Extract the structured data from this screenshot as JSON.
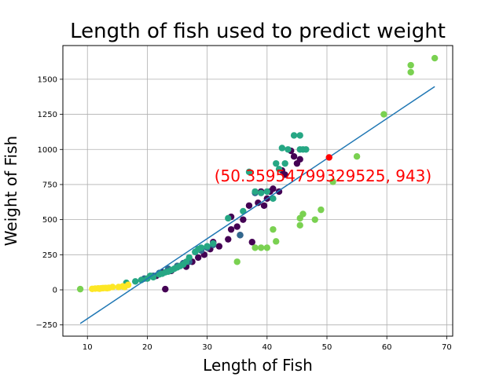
{
  "chart_data": {
    "type": "scatter",
    "title": "Length of fish used to predict weight",
    "xlabel": "Length of Fish",
    "ylabel": "Weight of Fish",
    "xlim": [
      5.9,
      71.0
    ],
    "ylim": [
      -330,
      1740
    ],
    "x_ticks": [
      10,
      20,
      30,
      40,
      50,
      60,
      70
    ],
    "y_ticks": [
      -250,
      0,
      250,
      500,
      750,
      1000,
      1250,
      1500
    ],
    "grid": true,
    "annotation": {
      "text": "(50.35954799329525, 943)",
      "x": 31.2,
      "y": 810,
      "color": "#ff0000"
    },
    "highlight_point": {
      "x": 50.36,
      "y": 943,
      "color": "#ff0000"
    },
    "regression_line": {
      "x": [
        8.8,
        68.0
      ],
      "y": [
        -240,
        1448
      ],
      "color": "#1f77b4"
    },
    "series": [
      {
        "color": "#440154",
        "points": [
          [
            23.0,
            5
          ],
          [
            21.5,
            100
          ],
          [
            22.5,
            125
          ],
          [
            24.0,
            135
          ],
          [
            26.5,
            165
          ],
          [
            27.5,
            200
          ],
          [
            28.5,
            230
          ],
          [
            29.5,
            250
          ],
          [
            30.5,
            290
          ],
          [
            31.0,
            340
          ],
          [
            32.0,
            310
          ],
          [
            33.5,
            360
          ],
          [
            34.0,
            430
          ],
          [
            35.0,
            450
          ],
          [
            35.5,
            390
          ],
          [
            36.0,
            500
          ],
          [
            37.0,
            600
          ],
          [
            37.5,
            340
          ],
          [
            38.5,
            620
          ],
          [
            39.0,
            700
          ],
          [
            39.5,
            600
          ],
          [
            40.0,
            650
          ],
          [
            40.5,
            700
          ],
          [
            41.0,
            720
          ],
          [
            42.0,
            700
          ],
          [
            42.5,
            850
          ],
          [
            43.0,
            820
          ],
          [
            44.0,
            990
          ],
          [
            44.5,
            950
          ],
          [
            45.0,
            900
          ],
          [
            45.5,
            930
          ],
          [
            34.0,
            520
          ]
        ]
      },
      {
        "color": "#31688e",
        "points": [
          [
            19.5,
            80
          ],
          [
            21.0,
            100
          ],
          [
            22.0,
            120
          ],
          [
            23.5,
            150
          ],
          [
            25.0,
            170
          ],
          [
            26.0,
            190
          ],
          [
            27.0,
            200
          ],
          [
            28.0,
            270
          ],
          [
            29.0,
            280
          ],
          [
            30.0,
            300
          ],
          [
            31.0,
            320
          ],
          [
            35.5,
            390
          ],
          [
            38.0,
            690
          ]
        ]
      },
      {
        "color": "#26a784",
        "points": [
          [
            16.5,
            50
          ],
          [
            18.0,
            60
          ],
          [
            19.0,
            70
          ],
          [
            20.0,
            80
          ],
          [
            20.5,
            100
          ],
          [
            21.0,
            90
          ],
          [
            22.0,
            110
          ],
          [
            22.5,
            115
          ],
          [
            23.0,
            125
          ],
          [
            23.5,
            130
          ],
          [
            24.0,
            140
          ],
          [
            24.5,
            150
          ],
          [
            25.0,
            160
          ],
          [
            25.5,
            170
          ],
          [
            26.0,
            180
          ],
          [
            26.5,
            200
          ],
          [
            27.0,
            230
          ],
          [
            28.0,
            270
          ],
          [
            28.5,
            290
          ],
          [
            29.0,
            300
          ],
          [
            30.0,
            310
          ],
          [
            31.0,
            330
          ],
          [
            33.5,
            510
          ],
          [
            36.0,
            560
          ],
          [
            37.0,
            840
          ],
          [
            38.0,
            700
          ],
          [
            39.0,
            690
          ],
          [
            40.0,
            700
          ],
          [
            41.0,
            650
          ],
          [
            41.5,
            900
          ],
          [
            42.0,
            860
          ],
          [
            42.5,
            1010
          ],
          [
            43.0,
            900
          ],
          [
            43.5,
            1000
          ],
          [
            44.5,
            1100
          ],
          [
            45.5,
            1100
          ],
          [
            45.5,
            1000
          ],
          [
            46.0,
            1000
          ],
          [
            46.5,
            1000
          ]
        ]
      },
      {
        "color": "#7ad151",
        "points": [
          [
            8.8,
            5
          ],
          [
            35.0,
            200
          ],
          [
            38.0,
            300
          ],
          [
            39.0,
            300
          ],
          [
            40.0,
            300
          ],
          [
            41.0,
            430
          ],
          [
            41.5,
            345
          ],
          [
            45.5,
            460
          ],
          [
            45.5,
            510
          ],
          [
            46.0,
            540
          ],
          [
            48.0,
            500
          ],
          [
            49.0,
            570
          ],
          [
            51.0,
            770
          ],
          [
            55.0,
            950
          ],
          [
            59.5,
            1250
          ],
          [
            64.0,
            1550
          ],
          [
            64.0,
            1600
          ],
          [
            68.0,
            1650
          ]
        ]
      },
      {
        "color": "#fde725",
        "points": [
          [
            10.8,
            7
          ],
          [
            11.3,
            9
          ],
          [
            11.8,
            10
          ],
          [
            12.0,
            8
          ],
          [
            12.3,
            11
          ],
          [
            12.6,
            12
          ],
          [
            13.0,
            13
          ],
          [
            13.3,
            12
          ],
          [
            13.6,
            14
          ],
          [
            14.2,
            20
          ],
          [
            15.2,
            20
          ],
          [
            15.9,
            25
          ],
          [
            16.2,
            20
          ],
          [
            16.8,
            35
          ]
        ]
      }
    ]
  }
}
